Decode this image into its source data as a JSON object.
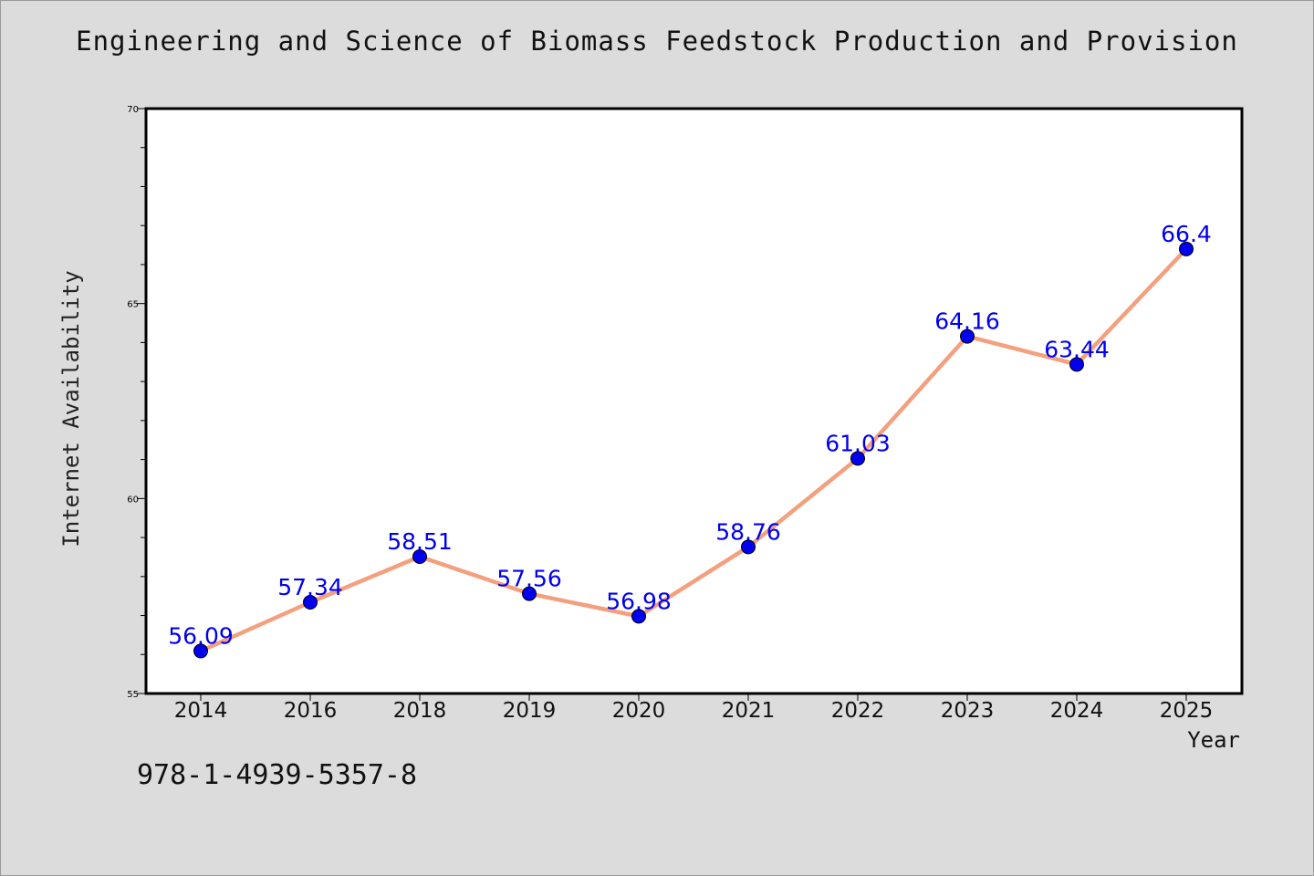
{
  "chart_data": {
    "type": "line",
    "title": "Engineering and Science of Biomass Feedstock Production and Provision",
    "xlabel": "Year",
    "ylabel": "Internet Availability",
    "categories": [
      "2014",
      "2016",
      "2018",
      "2019",
      "2020",
      "2021",
      "2022",
      "2023",
      "2024",
      "2025"
    ],
    "series": [
      {
        "values": [
          56.09,
          57.34,
          58.51,
          57.56,
          56.98,
          58.76,
          61.03,
          64.16,
          63.44,
          66.4
        ],
        "labels": [
          "56.09",
          "57.34",
          "58.51",
          "57.56",
          "56.98",
          "58.76",
          "61.03",
          "64.16",
          "63.44",
          "66.4"
        ],
        "line_color": "#f4a07e",
        "marker_color": "#0000ee",
        "label_color": "#0000ee"
      }
    ],
    "ylim": [
      55,
      70
    ],
    "yticks": [
      55,
      60,
      65,
      70
    ],
    "grid": false,
    "legend": "none"
  },
  "footnote": "978-1-4939-5357-8"
}
